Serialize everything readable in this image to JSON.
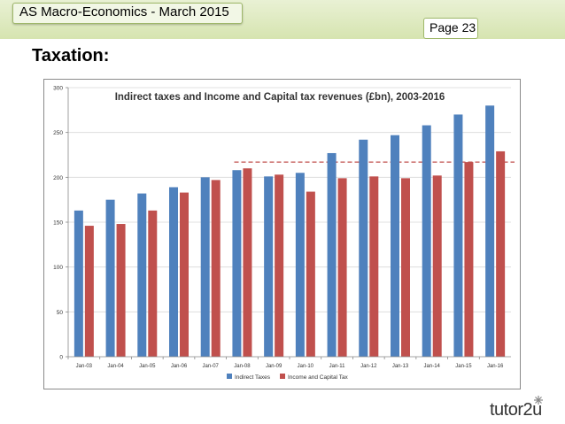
{
  "header": {
    "title": "AS Macro-Economics - March 2015",
    "page": "Page 23"
  },
  "section": {
    "heading": "Taxation:"
  },
  "brand": {
    "logo_text": "tutor2u"
  },
  "colors": {
    "indirect": "#4f81bd",
    "income_capital": "#c0504d",
    "reference_line": "#c0504d",
    "grid": "#d9d9d9"
  },
  "chart_data": {
    "type": "bar",
    "title": "Indirect taxes and Income and Capital tax revenues (£bn), 2003-2016",
    "categories": [
      "Jan-03",
      "Jan-04",
      "Jan-05",
      "Jan-06",
      "Jan-07",
      "Jan-08",
      "Jan-09",
      "Jan-10",
      "Jan-11",
      "Jan-12",
      "Jan-13",
      "Jan-14",
      "Jan-15",
      "Jan-16"
    ],
    "series": [
      {
        "name": "Indirect Taxes",
        "values": [
          163,
          175,
          182,
          189,
          200,
          208,
          201,
          205,
          227,
          242,
          247,
          258,
          270,
          280
        ]
      },
      {
        "name": "Income and Capital Tax",
        "values": [
          146,
          148,
          163,
          183,
          197,
          210,
          203,
          184,
          199,
          201,
          199,
          202,
          217,
          229
        ]
      }
    ],
    "ylim": [
      0,
      300
    ],
    "yticks": [
      0,
      50,
      100,
      150,
      200,
      250,
      300
    ],
    "reference_line": {
      "y": 217,
      "from": "Jan-08",
      "style": "dashed"
    },
    "grid": true,
    "legend_position": "bottom"
  }
}
